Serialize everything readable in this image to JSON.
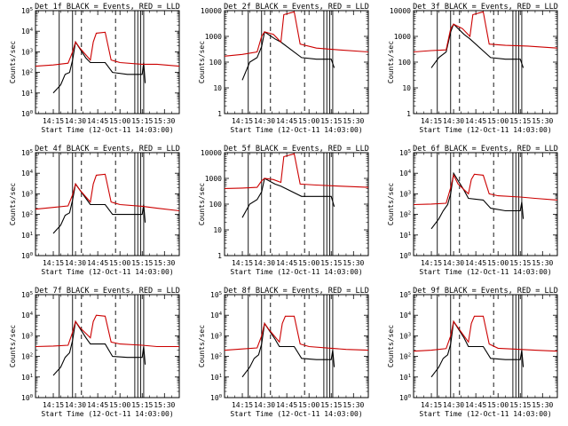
{
  "figure": {
    "ylabel": "Counts/sec",
    "xlabel": "Start Time (12-Oct-11 14:03:00)",
    "colors": {
      "events": "#000000",
      "lld": "#cc0000"
    }
  },
  "chart_data": [
    {
      "type": "line",
      "title": "Det 1f BLACK = Events, RED = LLD",
      "xlabel": "Start Time (12-Oct-11 14:03:00)",
      "ylabel": "Counts/sec",
      "scale": "log",
      "ylim": [
        1,
        100000
      ],
      "yticks": [
        "10^0",
        "10^1",
        "10^2",
        "10^3",
        "10^4",
        "10^5"
      ],
      "xticks": [
        "14:15",
        "14:30",
        "14:45",
        "15:00",
        "15:15",
        "15:30"
      ],
      "xlim": [
        "14:03",
        "15:40"
      ],
      "series": [
        {
          "name": "Events",
          "color": "#000000",
          "x": [
            "14:15",
            "14:20",
            "14:23",
            "14:26",
            "14:28",
            "14:30",
            "14:37",
            "14:40",
            "14:50",
            "14:55",
            "15:05",
            "15:15",
            "15:16",
            "15:17"
          ],
          "y": [
            10,
            25,
            80,
            100,
            400,
            3000,
            500,
            300,
            300,
            100,
            80,
            80,
            300,
            30
          ]
        },
        {
          "name": "LLD",
          "color": "#cc0000",
          "x": [
            "14:03",
            "14:15",
            "14:25",
            "14:28",
            "14:30",
            "14:33",
            "14:40",
            "14:42",
            "14:44",
            "14:50",
            "14:54",
            "15:00",
            "15:15",
            "15:25",
            "15:40"
          ],
          "y": [
            200,
            230,
            280,
            1000,
            3000,
            1500,
            400,
            3000,
            8000,
            9000,
            400,
            300,
            250,
            250,
            200
          ]
        }
      ]
    },
    {
      "type": "line",
      "title": "Det 2f BLACK = Events, RED = LLD",
      "xlabel": "Start Time (12-Oct-11 14:03:00)",
      "ylabel": "Counts/sec",
      "scale": "log",
      "ylim": [
        1,
        10000
      ],
      "yticks": [
        "1",
        "10",
        "100",
        "1000",
        "10000"
      ],
      "xticks": [
        "14:15",
        "14:30",
        "14:45",
        "15:00",
        "15:15",
        "15:30"
      ],
      "xlim": [
        "14:03",
        "15:40"
      ],
      "series": [
        {
          "name": "Events",
          "color": "#000000",
          "x": [
            "14:15",
            "14:20",
            "14:25",
            "14:28",
            "14:30",
            "14:37",
            "14:41",
            "14:55",
            "15:05",
            "15:15",
            "15:17"
          ],
          "y": [
            20,
            100,
            150,
            400,
            1500,
            800,
            600,
            150,
            130,
            130,
            60
          ]
        },
        {
          "name": "LLD",
          "color": "#cc0000",
          "x": [
            "14:03",
            "14:15",
            "14:25",
            "14:28",
            "14:30",
            "14:36",
            "14:41",
            "14:43",
            "14:50",
            "14:54",
            "15:05",
            "15:20",
            "15:40"
          ],
          "y": [
            170,
            200,
            250,
            1000,
            1500,
            1200,
            600,
            7000,
            9000,
            500,
            350,
            300,
            250
          ]
        }
      ]
    },
    {
      "type": "line",
      "title": "Det 3f BLACK = Events, RED = LLD",
      "xlabel": "Start Time (12-Oct-11 14:03:00)",
      "ylabel": "Counts/sec",
      "scale": "log",
      "ylim": [
        1,
        10000
      ],
      "yticks": [
        "1",
        "10",
        "100",
        "1000",
        "10000"
      ],
      "xticks": [
        "14:15",
        "14:30",
        "14:45",
        "15:00",
        "15:15",
        "15:30"
      ],
      "xlim": [
        "14:03",
        "15:40"
      ],
      "series": [
        {
          "name": "Events",
          "color": "#000000",
          "x": [
            "14:15",
            "14:20",
            "14:25",
            "14:28",
            "14:30",
            "14:37",
            "14:41",
            "14:55",
            "15:05",
            "15:15",
            "15:17"
          ],
          "y": [
            60,
            150,
            250,
            1500,
            3000,
            1200,
            800,
            150,
            130,
            130,
            60
          ]
        },
        {
          "name": "LLD",
          "color": "#cc0000",
          "x": [
            "14:03",
            "14:15",
            "14:25",
            "14:28",
            "14:30",
            "14:36",
            "14:41",
            "14:43",
            "14:50",
            "14:54",
            "15:05",
            "15:20",
            "15:40"
          ],
          "y": [
            250,
            280,
            300,
            2000,
            3000,
            2000,
            1000,
            7000,
            9000,
            500,
            450,
            420,
            350
          ]
        }
      ]
    },
    {
      "type": "line",
      "title": "Det 4f BLACK = Events, RED = LLD",
      "xlabel": "Start Time (12-Oct-11 14:03:00)",
      "ylabel": "Counts/sec",
      "scale": "log",
      "ylim": [
        1,
        100000
      ],
      "yticks": [
        "10^0",
        "10^1",
        "10^2",
        "10^3",
        "10^4",
        "10^5"
      ],
      "xticks": [
        "14:15",
        "14:30",
        "14:45",
        "15:00",
        "15:15",
        "15:30"
      ],
      "xlim": [
        "14:03",
        "15:40"
      ],
      "series": [
        {
          "name": "Events",
          "color": "#000000",
          "x": [
            "14:15",
            "14:20",
            "14:23",
            "14:26",
            "14:28",
            "14:30",
            "14:37",
            "14:40",
            "14:50",
            "14:55",
            "15:05",
            "15:15",
            "15:16",
            "15:17"
          ],
          "y": [
            12,
            30,
            90,
            120,
            500,
            3000,
            600,
            300,
            300,
            100,
            100,
            100,
            300,
            40
          ]
        },
        {
          "name": "LLD",
          "color": "#cc0000",
          "x": [
            "14:03",
            "14:15",
            "14:25",
            "14:28",
            "14:30",
            "14:33",
            "14:40",
            "14:42",
            "14:44",
            "14:50",
            "14:54",
            "15:00",
            "15:15",
            "15:25",
            "15:40"
          ],
          "y": [
            180,
            220,
            260,
            900,
            3000,
            1500,
            400,
            3000,
            8000,
            9000,
            400,
            300,
            250,
            200,
            150
          ]
        }
      ]
    },
    {
      "type": "line",
      "title": "Det 5f BLACK = Events, RED = LLD",
      "xlabel": "Start Time (12-Oct-11 14:03:00)",
      "ylabel": "Counts/sec",
      "scale": "log",
      "ylim": [
        1,
        10000
      ],
      "yticks": [
        "1",
        "10",
        "100",
        "1000",
        "10000"
      ],
      "xticks": [
        "14:15",
        "14:30",
        "14:45",
        "15:00",
        "15:15",
        "15:30"
      ],
      "xlim": [
        "14:03",
        "15:40"
      ],
      "series": [
        {
          "name": "Events",
          "color": "#000000",
          "x": [
            "14:15",
            "14:20",
            "14:25",
            "14:28",
            "14:30",
            "14:37",
            "14:41",
            "14:55",
            "15:05",
            "15:15",
            "15:17"
          ],
          "y": [
            30,
            100,
            150,
            300,
            1000,
            600,
            500,
            200,
            200,
            200,
            80
          ]
        },
        {
          "name": "LLD",
          "color": "#cc0000",
          "x": [
            "14:03",
            "14:15",
            "14:25",
            "14:28",
            "14:30",
            "14:36",
            "14:41",
            "14:43",
            "14:50",
            "14:54",
            "15:05",
            "15:20",
            "15:40"
          ],
          "y": [
            400,
            420,
            450,
            800,
            1000,
            900,
            700,
            7000,
            9000,
            600,
            550,
            500,
            450
          ]
        }
      ]
    },
    {
      "type": "line",
      "title": "Det 6f BLACK = Events, RED = LLD",
      "xlabel": "Start Time (12-Oct-11 14:03:00)",
      "ylabel": "Counts/sec",
      "scale": "log",
      "ylim": [
        1,
        100000
      ],
      "yticks": [
        "10^0",
        "10^1",
        "10^2",
        "10^3",
        "10^4",
        "10^5"
      ],
      "xticks": [
        "14:15",
        "14:30",
        "14:45",
        "15:00",
        "15:15",
        "15:30"
      ],
      "xlim": [
        "14:03",
        "15:40"
      ],
      "series": [
        {
          "name": "Events",
          "color": "#000000",
          "x": [
            "14:15",
            "14:20",
            "14:23",
            "14:26",
            "14:28",
            "14:30",
            "14:37",
            "14:40",
            "14:50",
            "14:55",
            "15:05",
            "15:15",
            "15:16",
            "15:17"
          ],
          "y": [
            20,
            60,
            150,
            300,
            1000,
            10000,
            1500,
            600,
            500,
            200,
            150,
            150,
            400,
            60
          ]
        },
        {
          "name": "LLD",
          "color": "#cc0000",
          "x": [
            "14:03",
            "14:15",
            "14:25",
            "14:28",
            "14:30",
            "14:33",
            "14:40",
            "14:42",
            "14:44",
            "14:50",
            "14:54",
            "15:00",
            "15:15",
            "15:25",
            "15:40"
          ],
          "y": [
            300,
            320,
            350,
            2000,
            8000,
            3000,
            1000,
            5000,
            9000,
            8000,
            1000,
            800,
            700,
            600,
            500
          ]
        }
      ]
    },
    {
      "type": "line",
      "title": "Det 7f BLACK = Events, RED = LLD",
      "xlabel": "Start Time (12-Oct-11 14:03:00)",
      "ylabel": "Counts/sec",
      "scale": "log",
      "ylim": [
        1,
        100000
      ],
      "yticks": [
        "10^0",
        "10^1",
        "10^2",
        "10^3",
        "10^4",
        "10^5"
      ],
      "xticks": [
        "14:15",
        "14:30",
        "14:45",
        "15:00",
        "15:15",
        "15:30"
      ],
      "xlim": [
        "14:03",
        "15:40"
      ],
      "series": [
        {
          "name": "Events",
          "color": "#000000",
          "x": [
            "14:15",
            "14:20",
            "14:23",
            "14:26",
            "14:28",
            "14:30",
            "14:37",
            "14:40",
            "14:50",
            "14:55",
            "15:05",
            "15:15",
            "15:16",
            "15:17"
          ],
          "y": [
            12,
            30,
            90,
            150,
            600,
            5000,
            800,
            400,
            400,
            100,
            90,
            90,
            300,
            40
          ]
        },
        {
          "name": "LLD",
          "color": "#cc0000",
          "x": [
            "14:03",
            "14:15",
            "14:25",
            "14:28",
            "14:30",
            "14:33",
            "14:40",
            "14:42",
            "14:44",
            "14:50",
            "14:54",
            "15:00",
            "15:15",
            "15:25",
            "15:40"
          ],
          "y": [
            300,
            320,
            350,
            1500,
            5000,
            2500,
            800,
            5000,
            10000,
            9000,
            500,
            400,
            350,
            300,
            300
          ]
        }
      ]
    },
    {
      "type": "line",
      "title": "Det 8f BLACK = Events, RED = LLD",
      "xlabel": "Start Time (12-Oct-11 14:03:00)",
      "ylabel": "Counts/sec",
      "scale": "log",
      "ylim": [
        1,
        100000
      ],
      "yticks": [
        "10^0",
        "10^1",
        "10^2",
        "10^3",
        "10^4",
        "10^5"
      ],
      "xticks": [
        "14:15",
        "14:30",
        "14:45",
        "15:00",
        "15:15",
        "15:30"
      ],
      "xlim": [
        "14:03",
        "15:40"
      ],
      "series": [
        {
          "name": "Events",
          "color": "#000000",
          "x": [
            "14:15",
            "14:20",
            "14:23",
            "14:26",
            "14:28",
            "14:30",
            "14:37",
            "14:40",
            "14:50",
            "14:55",
            "15:05",
            "15:15",
            "15:16",
            "15:17"
          ],
          "y": [
            10,
            30,
            80,
            120,
            400,
            4000,
            700,
            300,
            300,
            80,
            70,
            70,
            200,
            30
          ]
        },
        {
          "name": "LLD",
          "color": "#cc0000",
          "x": [
            "14:03",
            "14:15",
            "14:25",
            "14:28",
            "14:30",
            "14:33",
            "14:40",
            "14:42",
            "14:44",
            "14:50",
            "14:54",
            "15:00",
            "15:15",
            "15:25",
            "15:40"
          ],
          "y": [
            200,
            230,
            260,
            1000,
            4000,
            2000,
            500,
            4000,
            9000,
            9000,
            400,
            300,
            250,
            220,
            200
          ]
        }
      ]
    },
    {
      "type": "line",
      "title": "Det 9f BLACK = Events, RED = LLD",
      "xlabel": "Start Time (12-Oct-11 14:03:00)",
      "ylabel": "Counts/sec",
      "scale": "log",
      "ylim": [
        1,
        100000
      ],
      "yticks": [
        "10^0",
        "10^1",
        "10^2",
        "10^3",
        "10^4",
        "10^5"
      ],
      "xticks": [
        "14:15",
        "14:30",
        "14:45",
        "15:00",
        "15:15",
        "15:30"
      ],
      "xlim": [
        "14:03",
        "15:40"
      ],
      "series": [
        {
          "name": "Events",
          "color": "#000000",
          "x": [
            "14:15",
            "14:20",
            "14:23",
            "14:26",
            "14:28",
            "14:30",
            "14:37",
            "14:40",
            "14:50",
            "14:55",
            "15:05",
            "15:15",
            "15:16",
            "15:17"
          ],
          "y": [
            10,
            30,
            80,
            120,
            400,
            5000,
            800,
            300,
            300,
            80,
            70,
            70,
            200,
            30
          ]
        },
        {
          "name": "LLD",
          "color": "#cc0000",
          "x": [
            "14:03",
            "14:15",
            "14:25",
            "14:28",
            "14:30",
            "14:33",
            "14:40",
            "14:42",
            "14:44",
            "14:50",
            "14:54",
            "15:00",
            "15:15",
            "15:25",
            "15:40"
          ],
          "y": [
            180,
            200,
            240,
            1000,
            5000,
            2500,
            500,
            4000,
            9000,
            9000,
            400,
            250,
            220,
            200,
            180
          ]
        }
      ]
    }
  ]
}
